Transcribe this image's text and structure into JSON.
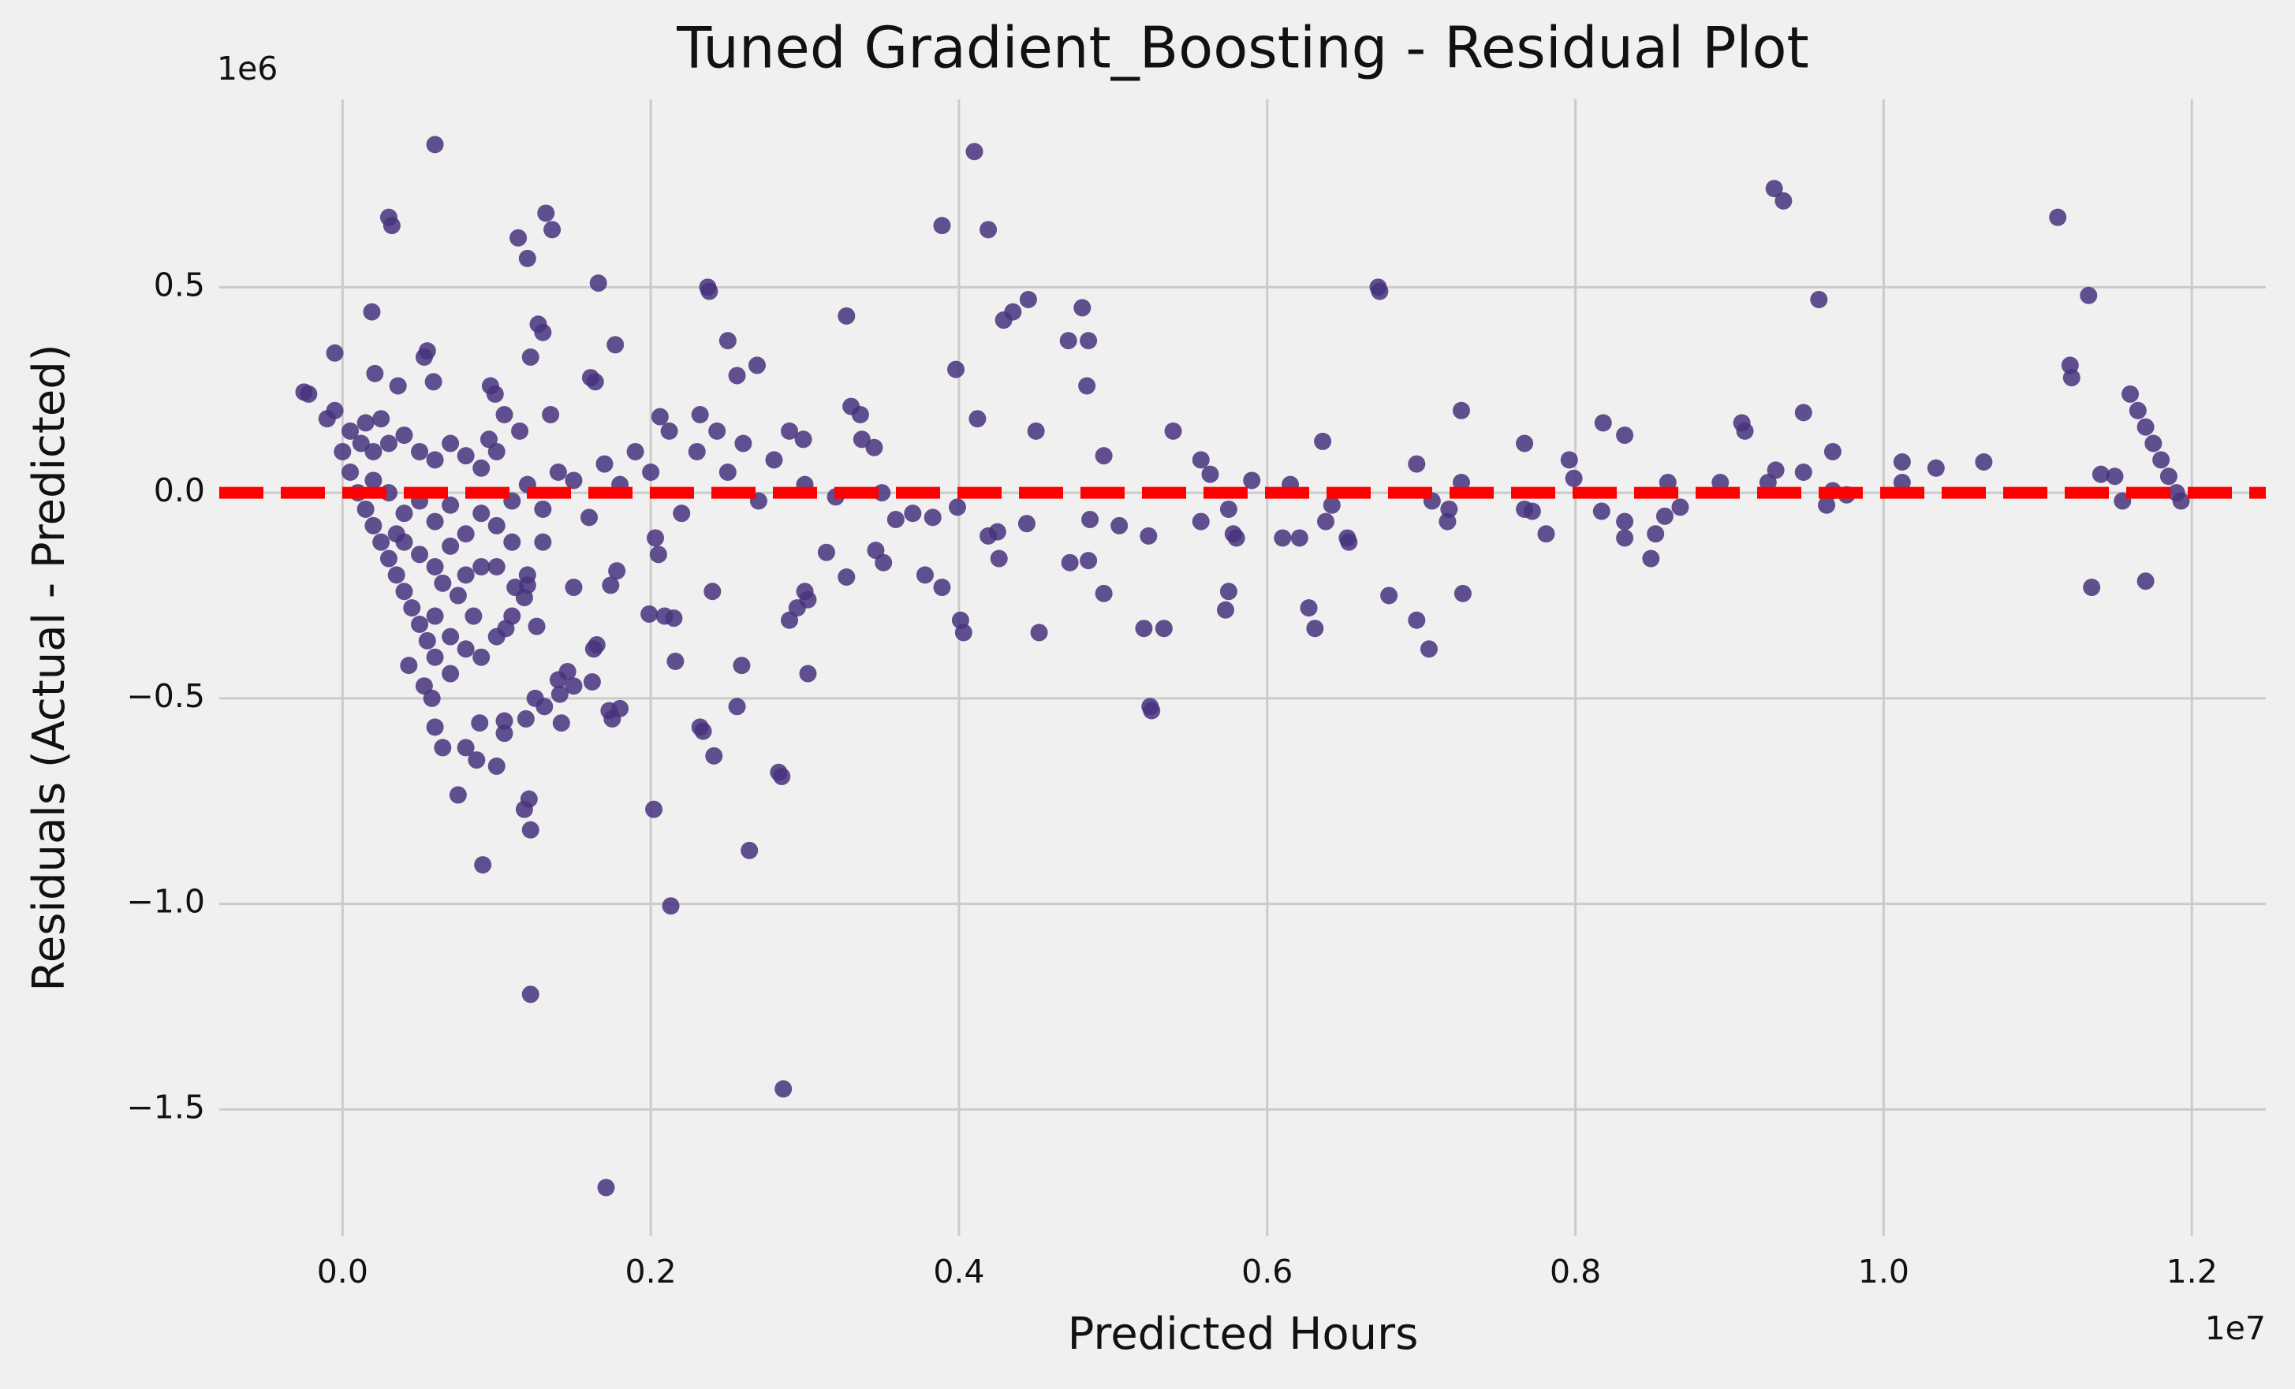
{
  "chart_data": {
    "type": "scatter",
    "title": "Tuned Gradient_Boosting - Residual Plot",
    "x_label": "Predicted Hours",
    "y_label": "Residuals (Actual - Predicted)",
    "x_offset_label": "1e7",
    "y_offset_label": "1e6",
    "color": "#46337e",
    "hline": 0,
    "hline_color": "#ff0000",
    "grid": true,
    "xlim": [
      -0.08,
      1.248
    ],
    "ylim": [
      -1.808,
      0.957
    ],
    "xticks": [
      {
        "value": 0,
        "label": "0.0"
      },
      0.2,
      0.4,
      0.6,
      0.8,
      {
        "value": 1,
        "label": "1.0"
      },
      1.2
    ],
    "yticks": [
      {
        "value": -1.5,
        "label": "−1.5"
      },
      {
        "value": -1,
        "label": "−1.0"
      },
      {
        "value": -0.5,
        "label": "−0.5"
      },
      {
        "value": 0,
        "label": "0.0"
      },
      0.5
    ],
    "x": [
      0.06,
      0.41,
      0.929,
      0.935,
      1.113,
      0.03,
      0.032,
      0.132,
      0.136,
      0.114,
      0.389,
      0.419,
      0.12,
      0.166,
      0.672,
      0.673,
      1.133,
      0.958,
      0.237,
      0.238,
      0.445,
      0.435,
      0.429,
      0.327,
      0.019,
      0.127,
      0.13,
      0.48,
      0.471,
      0.484,
      -0.005,
      0.055,
      0.053,
      0.122,
      0.177,
      0.25,
      0.269,
      0.256,
      0.398,
      0.021,
      0.059,
      0.161,
      0.164,
      0.036,
      0.096,
      0.099,
      -0.025,
      -0.022,
      0.483,
      1.122,
      1.121,
      0.33,
      0.336,
      0.948,
      0.726,
      0.818,
      0.412,
      0.206,
      0.212,
      0.135,
      0.105,
      0.232,
      0.243,
      0.45,
      0.539,
      0.832,
      0.908,
      0.91,
      0.337,
      0.345,
      0.767,
      0.29,
      0.299,
      0.636,
      0.967,
      1.012,
      1.034,
      1.065,
      1.141,
      0.894,
      0.86,
      0.697,
      0.726,
      0.494,
      0.557,
      0.563,
      0.615,
      0.59,
      0.796,
      0.799,
      0.93,
      0.925,
      0.948,
      1.012,
      0.967,
      0.976,
      0.963,
      0.817,
      0.858,
      0.868,
      0.832,
      0.832,
      0.852,
      0.849,
      0.781,
      0.772,
      0.767,
      0.718,
      0.707,
      0.717,
      0.705,
      0.697,
      0.727,
      0.679,
      0.653,
      0.652,
      0.621,
      0.61,
      0.627,
      0.631,
      0.638,
      0.642,
      0.575,
      0.578,
      0.58,
      0.575,
      0.573,
      0.557,
      0.523,
      0.504,
      0.485,
      0.494,
      0.472,
      0.484,
      0.452,
      0.52,
      0.533,
      0.524,
      0.525,
      0.444,
      0.425,
      0.419,
      0.426,
      0.399,
      0.401,
      0.403,
      0.389,
      0.378,
      0.383,
      0.359,
      0.351,
      0.346,
      0.314,
      0.327,
      0.3,
      0.302,
      0.295,
      0.29,
      0.302,
      0.283,
      0.285,
      0.286,
      0.264,
      0.259,
      0.256,
      0.241,
      0.205,
      0.203,
      0.199,
      0.209,
      0.215,
      0.216,
      0.202,
      0.213,
      0.232,
      0.234,
      0.24,
      0.171,
      0.162,
      0.165,
      0.18,
      0.173,
      0.175,
      0.174,
      0.178,
      0.122,
      0.122,
      0.121,
      0.118,
      0.091,
      0.142,
      0.141,
      0.146,
      0.14,
      0.15,
      0.131,
      0.125,
      0.119,
      0.105,
      0.105,
      0.1,
      0.08,
      0.065,
      0.075,
      0.087,
      0.089,
      0.06,
      0.058,
      0.053,
      0.043,
      0.163,
      0.106,
      0.126,
      0.12,
      0.112,
      0.118,
      0.15,
      0.0,
      0.005,
      0.01,
      0.015,
      0.02,
      0.025,
      0.03,
      0.035,
      0.04,
      0.045,
      0.05,
      0.055,
      0.06,
      0.005,
      0.012,
      0.02,
      0.03,
      0.04,
      0.05,
      0.06,
      0.07,
      0.08,
      0.09,
      0.1,
      0.02,
      0.03,
      0.04,
      0.05,
      0.06,
      0.07,
      0.08,
      0.09,
      0.1,
      0.11,
      0.12,
      0.13,
      0.14,
      0.15,
      0.16,
      0.17,
      0.18,
      0.19,
      0.2,
      0.04,
      0.05,
      0.06,
      0.065,
      0.07,
      0.075,
      0.08,
      0.085,
      0.09,
      0.06,
      0.07,
      0.08,
      0.09,
      0.1,
      0.11,
      0.12,
      0.13,
      0.1,
      0.11,
      0.07,
      0.035,
      -0.01,
      -0.005,
      0.015,
      0.025,
      0.095,
      0.115,
      0.23,
      0.25,
      0.27,
      0.22,
      0.26,
      0.3,
      0.32,
      0.35,
      0.37,
      0.28,
      1.16,
      1.165,
      1.17,
      1.175,
      1.18,
      1.185,
      1.19,
      1.193,
      1.135,
      1.17,
      1.15,
      1.155
    ],
    "values": [
      0.847,
      0.83,
      0.74,
      0.71,
      0.67,
      0.67,
      0.65,
      0.68,
      0.64,
      0.62,
      0.65,
      0.64,
      0.57,
      0.51,
      0.5,
      0.49,
      0.48,
      0.47,
      0.5,
      0.49,
      0.47,
      0.44,
      0.42,
      0.43,
      0.44,
      0.41,
      0.39,
      0.45,
      0.37,
      0.37,
      0.34,
      0.345,
      0.33,
      0.33,
      0.36,
      0.37,
      0.31,
      0.285,
      0.3,
      0.29,
      0.27,
      0.28,
      0.27,
      0.26,
      0.26,
      0.24,
      0.245,
      0.24,
      0.26,
      0.28,
      0.31,
      0.21,
      0.19,
      0.195,
      0.2,
      0.17,
      0.18,
      0.185,
      0.15,
      0.19,
      0.19,
      0.19,
      0.15,
      0.15,
      0.15,
      0.14,
      0.17,
      0.15,
      0.13,
      0.11,
      0.12,
      0.15,
      0.13,
      0.125,
      0.1,
      0.075,
      0.06,
      0.075,
      0.045,
      0.025,
      0.025,
      0.07,
      0.025,
      0.09,
      0.08,
      0.045,
      0.02,
      0.03,
      0.08,
      0.035,
      0.055,
      0.025,
      0.05,
      0.025,
      0.005,
      -0.005,
      -0.03,
      -0.045,
      -0.057,
      -0.035,
      -0.07,
      -0.11,
      -0.1,
      -0.16,
      -0.1,
      -0.045,
      -0.04,
      -0.04,
      -0.02,
      -0.07,
      -0.38,
      -0.31,
      -0.245,
      -0.25,
      -0.12,
      -0.11,
      -0.11,
      -0.11,
      -0.28,
      -0.33,
      -0.07,
      -0.03,
      -0.04,
      -0.1,
      -0.11,
      -0.24,
      -0.285,
      -0.07,
      -0.105,
      -0.08,
      -0.065,
      -0.245,
      -0.17,
      -0.165,
      -0.34,
      -0.33,
      -0.33,
      -0.52,
      -0.53,
      -0.075,
      -0.095,
      -0.105,
      -0.16,
      -0.035,
      -0.31,
      -0.34,
      -0.23,
      -0.2,
      -0.06,
      -0.065,
      -0.17,
      -0.14,
      -0.145,
      -0.205,
      -0.24,
      -0.26,
      -0.28,
      -0.31,
      -0.44,
      -0.68,
      -0.69,
      -1.45,
      -0.87,
      -0.42,
      -0.52,
      -0.64,
      -0.15,
      -0.11,
      -0.295,
      -0.3,
      -0.305,
      -0.41,
      -0.77,
      -1.005,
      -0.57,
      -0.58,
      -0.24,
      -1.69,
      -0.46,
      -0.37,
      -0.525,
      -0.53,
      -0.55,
      -0.225,
      -0.19,
      -1.22,
      -0.82,
      -0.745,
      -0.77,
      -0.905,
      -0.56,
      -0.49,
      -0.435,
      -0.455,
      -0.47,
      -0.52,
      -0.5,
      -0.55,
      -0.555,
      -0.585,
      -0.665,
      -0.62,
      -0.62,
      -0.735,
      -0.65,
      -0.56,
      -0.57,
      -0.5,
      -0.47,
      -0.42,
      -0.38,
      -0.33,
      -0.325,
      -0.225,
      -0.23,
      -0.255,
      -0.23,
      0.1,
      0.05,
      0.0,
      -0.04,
      -0.08,
      -0.12,
      -0.16,
      -0.2,
      -0.24,
      -0.28,
      -0.32,
      -0.36,
      -0.4,
      0.15,
      0.12,
      0.1,
      0.12,
      0.14,
      0.1,
      0.08,
      0.12,
      0.09,
      0.06,
      0.1,
      0.03,
      0.0,
      -0.05,
      -0.02,
      -0.07,
      -0.03,
      -0.1,
      -0.05,
      -0.08,
      -0.02,
      0.02,
      -0.04,
      0.05,
      0.03,
      -0.06,
      0.07,
      0.02,
      0.1,
      0.05,
      -0.12,
      -0.15,
      -0.18,
      -0.22,
      -0.13,
      -0.25,
      -0.2,
      -0.3,
      -0.18,
      -0.3,
      -0.35,
      -0.38,
      -0.4,
      -0.35,
      -0.3,
      -0.2,
      -0.12,
      -0.18,
      -0.12,
      -0.44,
      -0.1,
      0.18,
      0.2,
      0.17,
      0.18,
      0.13,
      0.15,
      0.1,
      0.05,
      -0.02,
      -0.05,
      0.12,
      0.02,
      -0.01,
      0.0,
      -0.05,
      0.08,
      0.24,
      0.2,
      0.16,
      0.12,
      0.08,
      0.04,
      0.0,
      -0.02,
      -0.23,
      -0.215,
      0.04,
      -0.02
    ]
  }
}
